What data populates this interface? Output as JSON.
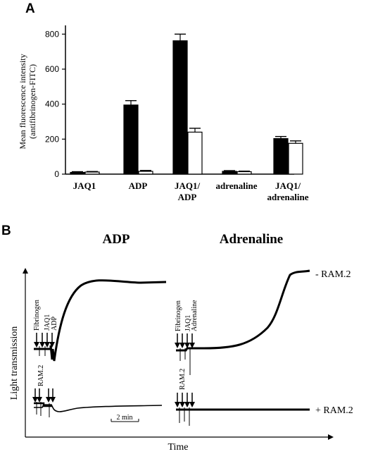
{
  "panel_a_letter": "A",
  "panel_b_letter": "B",
  "chart_data": [
    {
      "type": "bar",
      "ylabel_line1": "Mean fluorescence intensity",
      "ylabel_line2": "(antifibrinogen-FITC)",
      "ylim": [
        0,
        850
      ],
      "yticks": [
        0,
        200,
        400,
        600,
        800
      ],
      "categories": [
        [
          "JAQ1"
        ],
        [
          "ADP"
        ],
        [
          "JAQ1/",
          "ADP"
        ],
        [
          "adrenaline"
        ],
        [
          "JAQ1/",
          "adrenaline"
        ]
      ],
      "series": [
        {
          "color": "#000000",
          "values": [
            10,
            395,
            762,
            16,
            203
          ],
          "errors": [
            4,
            25,
            38,
            4,
            12
          ]
        },
        {
          "color": "#ffffff",
          "values": [
            12,
            16,
            240,
            14,
            176
          ],
          "errors": [
            3,
            5,
            22,
            3,
            14
          ]
        }
      ]
    },
    {
      "type": "line",
      "xlabel": "Time",
      "ylabel": "Light transmission",
      "panels": [
        {
          "title": "ADP",
          "arrow_labels_top": [
            "Fibrinogen",
            "JAQ1",
            "ADP"
          ],
          "arrow_labels_bottom": [
            "RAM.2"
          ],
          "scale_bar": "2 min"
        },
        {
          "title": "Adrenaline",
          "arrow_labels_top": [
            "Fibrinogen",
            "JAQ1",
            "Adrenaline"
          ],
          "arrow_labels_bottom": [
            "RAM.2"
          ]
        }
      ],
      "trace_labels": [
        "- RAM.2",
        "+ RAM.2"
      ]
    }
  ]
}
